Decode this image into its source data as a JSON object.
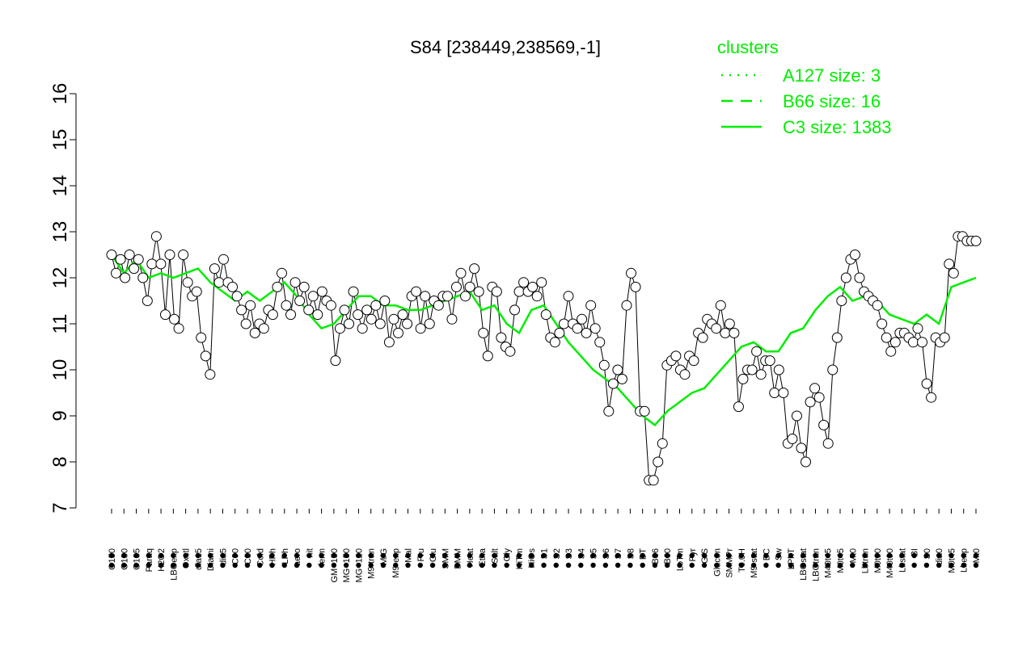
{
  "colors": {
    "series": "#00ee00",
    "axis": "#000000",
    "point_fill": "#ffffff"
  },
  "chart_data": {
    "type": "line",
    "title": "S84 [238449,238569,-1]",
    "xlabel": "",
    "ylabel": "",
    "ylim": [
      7,
      16
    ],
    "yticks": [
      7,
      8,
      9,
      10,
      11,
      12,
      13,
      14,
      15,
      16
    ],
    "x_tick_labels": [
      "G150",
      "G180",
      "G135",
      "Paraq",
      "H2O2",
      "LBGexp",
      "Oxctl",
      "dia15",
      "Diami",
      "dia5",
      "C90",
      "C30",
      "Cold",
      "HPh",
      "LPh",
      "aero",
      "nit",
      "ferm",
      "GM+150",
      "MG+150",
      "MG+120",
      "M9-tran",
      "M/G",
      "M9-exp",
      "Mal",
      "Fru",
      "Glu",
      "SMM",
      "BMM",
      "Heat",
      "Etha",
      "Salt",
      "Gly",
      "HiTm",
      "HiOs",
      "S1",
      "S2",
      "S3",
      "S4",
      "S5",
      "S6",
      "S7",
      "S8",
      "BT",
      "B36",
      "B60",
      "LoTm",
      "Pyr",
      "G/S",
      "Glucon",
      "SMMPr",
      "T0.0H",
      "M9-stat",
      "BC",
      "Sw",
      "LPhT",
      "LBGstat",
      "LBGtran",
      "M40t45",
      "M0t45",
      "Mt0",
      "Lbtran",
      "M0t90",
      "M40t90",
      "Lbstat",
      "BI",
      "S0",
      "dia0",
      "M0t45",
      "Lbexp",
      "Mt0"
    ],
    "legend_title": "clusters",
    "legend_position": "top-right",
    "series": [
      {
        "name": "A127 size: 3",
        "style": "dotted"
      },
      {
        "name": "B66 size: 16",
        "style": "dashed"
      },
      {
        "name": "C3 size: 1383",
        "style": "solid",
        "points": [
          [
            1,
            12.5
          ],
          [
            2,
            12.1
          ],
          [
            3,
            12.4
          ],
          [
            4,
            12.0
          ],
          [
            5,
            12.1
          ],
          [
            6,
            12.0
          ],
          [
            7,
            12.1
          ],
          [
            8,
            12.2
          ],
          [
            9,
            11.9
          ],
          [
            10,
            11.7
          ],
          [
            11,
            11.5
          ],
          [
            12,
            11.7
          ],
          [
            13,
            11.5
          ],
          [
            14,
            11.7
          ],
          [
            15,
            11.9
          ],
          [
            16,
            11.6
          ],
          [
            17,
            11.2
          ],
          [
            18,
            10.9
          ],
          [
            19,
            11.0
          ],
          [
            20,
            11.3
          ],
          [
            21,
            11.6
          ],
          [
            22,
            11.6
          ],
          [
            23,
            11.4
          ],
          [
            24,
            11.4
          ],
          [
            25,
            11.3
          ],
          [
            26,
            11.3
          ],
          [
            27,
            11.4
          ],
          [
            28,
            11.5
          ],
          [
            29,
            11.6
          ],
          [
            30,
            11.7
          ],
          [
            31,
            11.3
          ],
          [
            32,
            11.4
          ],
          [
            33,
            11.0
          ],
          [
            34,
            10.8
          ],
          [
            35,
            11.3
          ],
          [
            36,
            11.4
          ],
          [
            37,
            11.0
          ],
          [
            38,
            10.6
          ],
          [
            39,
            10.3
          ],
          [
            40,
            10.0
          ],
          [
            41,
            9.8
          ],
          [
            42,
            9.6
          ],
          [
            43,
            9.3
          ],
          [
            44,
            9.0
          ],
          [
            45,
            8.8
          ],
          [
            46,
            9.1
          ],
          [
            47,
            9.3
          ],
          [
            48,
            9.5
          ],
          [
            49,
            9.6
          ],
          [
            50,
            9.9
          ],
          [
            51,
            10.2
          ],
          [
            52,
            10.5
          ],
          [
            53,
            10.6
          ],
          [
            54,
            10.4
          ],
          [
            55,
            10.4
          ],
          [
            56,
            10.8
          ],
          [
            57,
            10.9
          ],
          [
            58,
            11.3
          ],
          [
            59,
            11.6
          ],
          [
            60,
            11.8
          ],
          [
            61,
            11.5
          ],
          [
            62,
            11.6
          ],
          [
            63,
            11.5
          ],
          [
            64,
            11.2
          ],
          [
            65,
            11.1
          ],
          [
            66,
            11.0
          ],
          [
            67,
            11.2
          ],
          [
            68,
            11.0
          ],
          [
            69,
            11.8
          ],
          [
            70,
            11.9
          ],
          [
            71,
            12.0
          ]
        ]
      }
    ],
    "observations": [
      12.5,
      12.1,
      12.4,
      12.0,
      12.5,
      12.2,
      12.4,
      12.0,
      11.5,
      12.3,
      12.9,
      12.3,
      11.2,
      12.5,
      11.1,
      10.9,
      12.5,
      11.9,
      11.6,
      11.7,
      10.7,
      10.3,
      9.9,
      12.2,
      11.9,
      12.4,
      11.9,
      11.8,
      11.6,
      11.3,
      11.0,
      11.4,
      10.8,
      11.0,
      10.9,
      11.3,
      11.2,
      11.8,
      12.1,
      11.4,
      11.2,
      11.9,
      11.5,
      11.8,
      11.3,
      11.6,
      11.2,
      11.7,
      11.5,
      11.4,
      10.2,
      10.9,
      11.3,
      11.0,
      11.7,
      11.2,
      10.9,
      11.3,
      11.1,
      11.4,
      11.0,
      11.5,
      10.6,
      11.1,
      10.8,
      11.2,
      11.0,
      11.6,
      11.7,
      10.9,
      11.6,
      11.0,
      11.5,
      11.4,
      11.6,
      11.6,
      11.1,
      11.8,
      12.1,
      11.6,
      11.8,
      12.2,
      11.7,
      10.8,
      10.3,
      11.8,
      11.7,
      10.7,
      10.5,
      10.4,
      11.3,
      11.7,
      11.9,
      11.7,
      11.8,
      11.6,
      11.9,
      11.2,
      10.7,
      10.6,
      10.8,
      11.0,
      11.6,
      11.0,
      10.9,
      11.1,
      10.8,
      11.4,
      10.9,
      10.6,
      10.1,
      9.1,
      9.7,
      10.0,
      9.8,
      11.4,
      12.1,
      11.8,
      9.1,
      9.1,
      7.6,
      7.6,
      8.0,
      8.4,
      10.1,
      10.2,
      10.3,
      10.0,
      9.9,
      10.3,
      10.2,
      10.8,
      10.7,
      11.1,
      11.0,
      10.9,
      11.4,
      10.8,
      11.0,
      10.8,
      9.2,
      9.8,
      10.0,
      10.0,
      10.4,
      9.9,
      10.2,
      10.2,
      9.5,
      10.0,
      9.5,
      8.4,
      8.5,
      9.0,
      8.3,
      8.0,
      9.3,
      9.6,
      9.4,
      8.8,
      8.4,
      10.0,
      10.7,
      11.5,
      12.0,
      12.4,
      12.5,
      12.0,
      11.7,
      11.6,
      11.5,
      11.4,
      11.0,
      10.7,
      10.4,
      10.6,
      10.8,
      10.8,
      10.7,
      10.6,
      10.9,
      10.6,
      9.7,
      9.4,
      10.7,
      10.6,
      10.7,
      12.3,
      12.1,
      12.9,
      12.9,
      12.8,
      12.8,
      12.8
    ]
  }
}
